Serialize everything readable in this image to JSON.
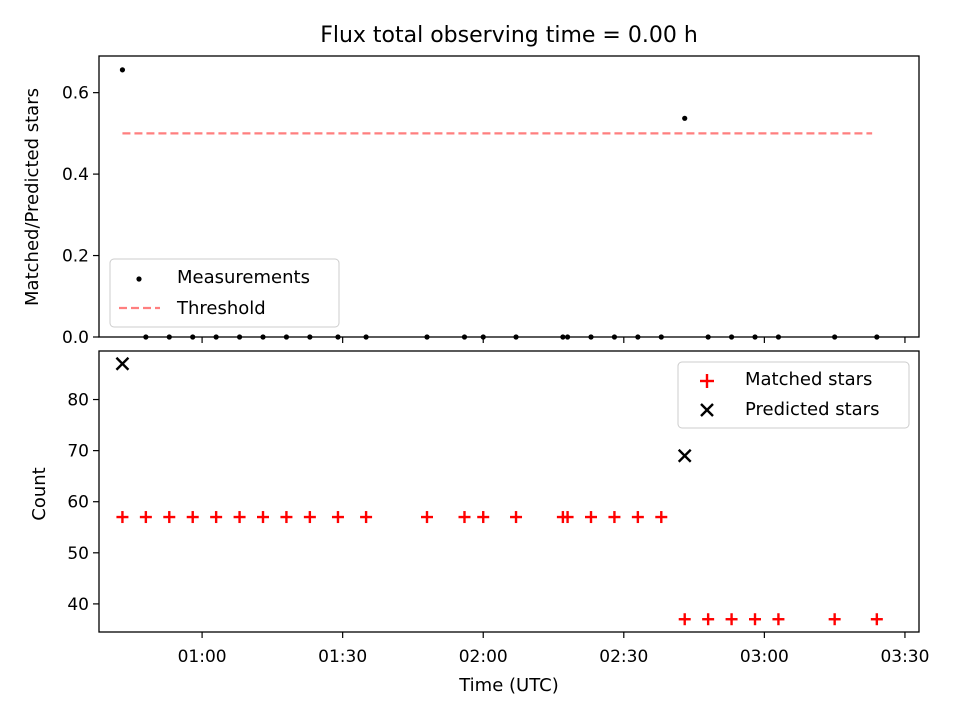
{
  "figure": {
    "title": "Flux total observing time = 0.00 h",
    "xlabel": "Time (UTC)"
  },
  "colors": {
    "measurement": "#000000",
    "threshold": "#ff7f7f",
    "matched": "#ff0000",
    "predicted": "#000000"
  },
  "chart_data": [
    {
      "type": "scatter",
      "ylabel": "Matched/Predicted stars",
      "xlim": [
        "00:38",
        "03:33"
      ],
      "ylim": [
        0,
        0.69
      ],
      "x_ticks": [],
      "y_ticks": [
        {
          "value": 0.0,
          "label": "0.0"
        },
        {
          "value": 0.2,
          "label": "0.2"
        },
        {
          "value": 0.4,
          "label": "0.4"
        },
        {
          "value": 0.6,
          "label": "0.6"
        }
      ],
      "legend_position": "lower left",
      "legend": [
        "Measurements",
        "Threshold"
      ],
      "series": [
        {
          "name": "Measurements",
          "marker": "dot",
          "x": [
            "00:43",
            "00:48",
            "00:53",
            "00:58",
            "01:03",
            "01:08",
            "01:13",
            "01:18",
            "01:23",
            "01:29",
            "01:35",
            "01:48",
            "01:56",
            "02:00",
            "02:07",
            "02:17",
            "02:18",
            "02:23",
            "02:28",
            "02:33",
            "02:38",
            "02:43",
            "02:48",
            "02:53",
            "02:58",
            "03:03",
            "03:15",
            "03:24"
          ],
          "y": [
            0.656,
            0,
            0,
            0,
            0,
            0,
            0,
            0,
            0,
            0,
            0,
            0,
            0,
            0,
            0,
            0,
            0,
            0,
            0,
            0,
            0,
            0.537,
            0,
            0,
            0,
            0,
            0,
            0
          ]
        },
        {
          "name": "Threshold",
          "marker": "dashed-line",
          "x": [
            "00:43",
            "03:23"
          ],
          "y": [
            0.5,
            0.5
          ]
        }
      ]
    },
    {
      "type": "scatter",
      "ylabel": "Count",
      "xlim": [
        "00:38",
        "03:33"
      ],
      "ylim": [
        34.5,
        89.5
      ],
      "x_ticks": [
        {
          "value": "01:00",
          "label": "01:00"
        },
        {
          "value": "01:30",
          "label": "01:30"
        },
        {
          "value": "02:00",
          "label": "02:00"
        },
        {
          "value": "02:30",
          "label": "02:30"
        },
        {
          "value": "03:00",
          "label": "03:00"
        },
        {
          "value": "03:30",
          "label": "03:30"
        }
      ],
      "y_ticks": [
        {
          "value": 40,
          "label": "40"
        },
        {
          "value": 50,
          "label": "50"
        },
        {
          "value": 60,
          "label": "60"
        },
        {
          "value": 70,
          "label": "70"
        },
        {
          "value": 80,
          "label": "80"
        }
      ],
      "legend_position": "upper right",
      "legend": [
        "Matched stars",
        "Predicted stars"
      ],
      "series": [
        {
          "name": "Matched stars",
          "marker": "plus",
          "x": [
            "00:43",
            "00:48",
            "00:53",
            "00:58",
            "01:03",
            "01:08",
            "01:13",
            "01:18",
            "01:23",
            "01:29",
            "01:35",
            "01:48",
            "01:56",
            "02:00",
            "02:07",
            "02:17",
            "02:18",
            "02:23",
            "02:28",
            "02:33",
            "02:38",
            "02:43",
            "02:48",
            "02:53",
            "02:58",
            "03:03",
            "03:15",
            "03:24"
          ],
          "y": [
            57,
            57,
            57,
            57,
            57,
            57,
            57,
            57,
            57,
            57,
            57,
            57,
            57,
            57,
            57,
            57,
            57,
            57,
            57,
            57,
            57,
            37,
            37,
            37,
            37,
            37,
            37,
            37
          ]
        },
        {
          "name": "Predicted stars",
          "marker": "x",
          "x": [
            "00:43",
            "02:43"
          ],
          "y": [
            87,
            69
          ]
        }
      ]
    }
  ]
}
